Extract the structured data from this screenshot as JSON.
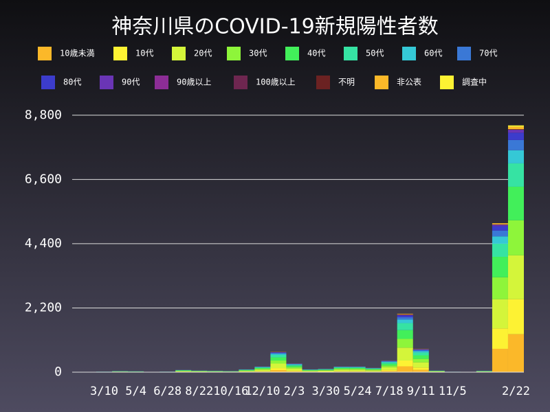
{
  "chart_data": {
    "type": "stacked_bar",
    "title": "神奈川県のCOVID-19新規陽性者数",
    "categories": [
      "3/10",
      null,
      "5/4",
      null,
      "6/28",
      null,
      "8/22",
      null,
      "10/16",
      null,
      "12/10",
      null,
      "2/3",
      null,
      "3/30",
      null,
      "5/24",
      null,
      "7/18",
      null,
      "9/11",
      null,
      "11/5",
      null,
      null,
      null,
      "2/22"
    ],
    "ylim": [
      0,
      9100
    ],
    "yticks": [
      0,
      {
        "value": 2200,
        "label": "2,200"
      },
      {
        "value": 4400,
        "label": "4,400"
      },
      {
        "value": 6600,
        "label": "6,600"
      },
      {
        "value": 8800,
        "label": "8,800"
      }
    ],
    "grid": true,
    "series": [
      {
        "name": "10歳未満",
        "color": "#fbb829",
        "values": [
          2,
          4,
          3,
          1,
          2,
          8,
          6,
          5,
          4,
          10,
          20,
          70,
          30,
          10,
          12,
          20,
          20,
          15,
          40,
          200,
          80,
          6,
          2,
          1,
          5,
          800,
          1300
        ]
      },
      {
        "name": "10代",
        "color": "#fdf233",
        "values": [
          2,
          4,
          3,
          1,
          2,
          8,
          6,
          5,
          4,
          10,
          20,
          70,
          30,
          10,
          12,
          20,
          20,
          15,
          40,
          200,
          80,
          6,
          2,
          1,
          5,
          700,
          1200
        ]
      },
      {
        "name": "20代",
        "color": "#d4f53a",
        "values": [
          4,
          9,
          7,
          2,
          4,
          18,
          13,
          11,
          9,
          22,
          44,
          154,
          66,
          22,
          26,
          44,
          44,
          33,
          88,
          440,
          176,
          13,
          3,
          2,
          11,
          1000,
          1500
        ]
      },
      {
        "name": "30代",
        "color": "#8ef53a",
        "values": [
          3,
          6,
          5,
          2,
          3,
          12,
          9,
          8,
          6,
          15,
          30,
          105,
          45,
          15,
          18,
          30,
          30,
          23,
          60,
          300,
          120,
          9,
          2,
          2,
          8,
          750,
          1200
        ]
      },
      {
        "name": "40代",
        "color": "#42ef5a",
        "values": [
          3,
          6,
          5,
          2,
          3,
          12,
          9,
          8,
          6,
          15,
          30,
          105,
          45,
          15,
          18,
          30,
          30,
          23,
          60,
          300,
          120,
          9,
          2,
          2,
          8,
          700,
          1150
        ]
      },
      {
        "name": "50代",
        "color": "#36e3a3",
        "values": [
          2,
          5,
          4,
          1,
          2,
          10,
          7,
          6,
          5,
          12,
          24,
          84,
          36,
          12,
          14,
          24,
          24,
          18,
          48,
          240,
          96,
          7,
          2,
          1,
          6,
          450,
          800
        ]
      },
      {
        "name": "60代",
        "color": "#35c8d6",
        "values": [
          1,
          2,
          2,
          1,
          1,
          5,
          4,
          3,
          2,
          6,
          12,
          42,
          18,
          6,
          7,
          12,
          12,
          9,
          24,
          120,
          48,
          4,
          1,
          1,
          3,
          250,
          450
        ]
      },
      {
        "name": "70代",
        "color": "#3a78d6",
        "values": [
          1,
          2,
          1,
          0,
          1,
          3,
          2,
          2,
          2,
          4,
          8,
          28,
          12,
          4,
          5,
          8,
          8,
          6,
          16,
          80,
          32,
          2,
          1,
          0,
          2,
          200,
          350
        ]
      },
      {
        "name": "80代",
        "color": "#3c3ccc",
        "values": [
          1,
          1,
          1,
          0,
          1,
          2,
          2,
          2,
          1,
          3,
          6,
          21,
          9,
          3,
          4,
          6,
          6,
          5,
          12,
          60,
          24,
          2,
          0,
          0,
          2,
          150,
          250
        ]
      },
      {
        "name": "90代",
        "color": "#6a35b5",
        "values": [
          0,
          0,
          0,
          0,
          0,
          1,
          1,
          1,
          0,
          1,
          2,
          7,
          3,
          1,
          1,
          2,
          2,
          2,
          4,
          20,
          8,
          1,
          0,
          0,
          1,
          50,
          100
        ]
      },
      {
        "name": "90歳以上",
        "color": "#8c2d96",
        "values": [
          0,
          0,
          0,
          0,
          0,
          0,
          0,
          0,
          0,
          0,
          0,
          0,
          0,
          0,
          0,
          0,
          0,
          0,
          0,
          0,
          0,
          0,
          0,
          0,
          0,
          0,
          0
        ]
      },
      {
        "name": "100歳以上",
        "color": "#6e2650",
        "values": [
          0,
          0,
          0,
          0,
          0,
          0,
          0,
          0,
          0,
          0,
          0,
          0,
          0,
          0,
          0,
          0,
          0,
          0,
          0,
          0,
          0,
          0,
          0,
          0,
          0,
          0,
          0
        ]
      },
      {
        "name": "不明",
        "color": "#6b2222",
        "values": [
          0,
          0,
          0,
          0,
          0,
          1,
          1,
          0,
          0,
          1,
          2,
          7,
          3,
          1,
          1,
          2,
          2,
          2,
          4,
          20,
          8,
          1,
          0,
          0,
          0,
          10,
          20
        ]
      },
      {
        "name": "非公表",
        "color": "#fbb829",
        "values": [
          0,
          0,
          0,
          0,
          0,
          1,
          1,
          1,
          1,
          1,
          2,
          7,
          3,
          1,
          1,
          2,
          2,
          2,
          4,
          20,
          8,
          0,
          0,
          0,
          0,
          40,
          80
        ]
      },
      {
        "name": "調査中",
        "color": "#fdf233",
        "values": [
          0,
          0,
          0,
          0,
          0,
          0,
          0,
          0,
          0,
          0,
          0,
          0,
          0,
          0,
          0,
          0,
          0,
          0,
          0,
          0,
          0,
          0,
          0,
          0,
          0,
          0,
          50
        ]
      }
    ]
  }
}
